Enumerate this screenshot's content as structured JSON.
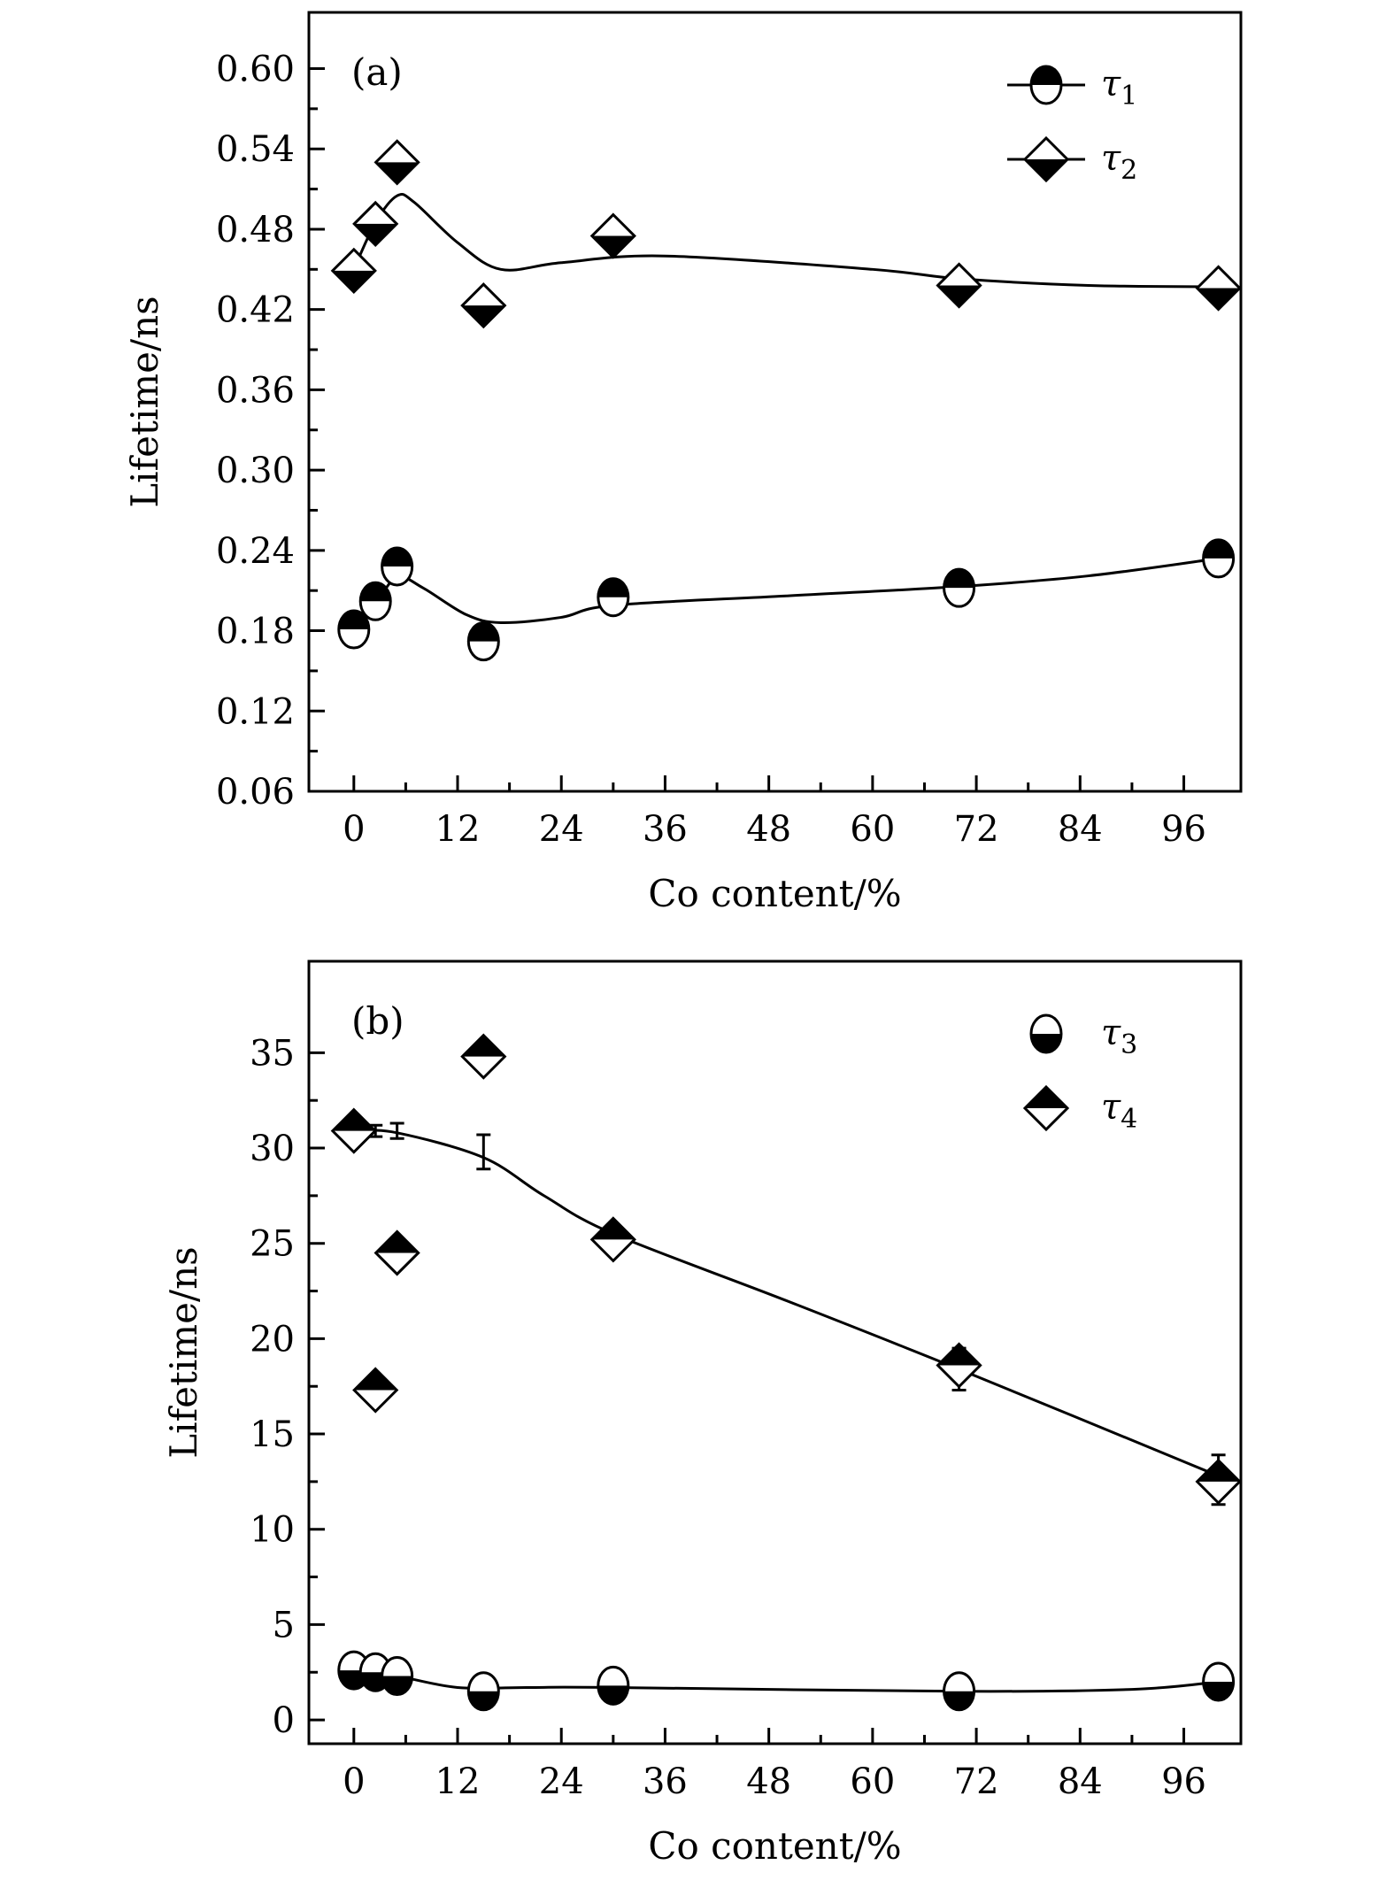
{
  "chart_data": [
    {
      "type": "scatter",
      "panel_label": "(a)",
      "xlabel": "Co content/%",
      "ylabel": "Lifetime/ns",
      "xlim": [
        -5.2,
        102.6
      ],
      "ylim": [
        0.06,
        0.642
      ],
      "xticks": [
        0,
        12,
        24,
        36,
        48,
        60,
        72,
        84,
        96
      ],
      "xtick_labels": [
        "0",
        "12",
        "24",
        "36",
        "48",
        "60",
        "72",
        "84",
        "96"
      ],
      "yticks": [
        0.06,
        0.12,
        0.18,
        0.24,
        0.3,
        0.36,
        0.42,
        0.48,
        0.54,
        0.6
      ],
      "ytick_labels": [
        "0.06",
        "0.12",
        "0.18",
        "0.24",
        "0.30",
        "0.36",
        "0.42",
        "0.48",
        "0.54",
        "0.60"
      ],
      "legend_position": "top-right",
      "series": [
        {
          "name": "τ1",
          "sub": "1",
          "marker": "circle-top-filled",
          "x": [
            0,
            2.5,
            5,
            15,
            30,
            70,
            100
          ],
          "y": [
            0.181,
            0.202,
            0.228,
            0.172,
            0.205,
            0.212,
            0.234
          ],
          "fit_x": [
            0,
            2.5,
            5,
            8,
            13,
            17,
            24,
            30,
            50,
            70,
            85,
            100
          ],
          "fit_y": [
            0.18,
            0.2,
            0.22,
            0.212,
            0.192,
            0.186,
            0.19,
            0.199,
            0.206,
            0.213,
            0.221,
            0.234
          ]
        },
        {
          "name": "τ2",
          "sub": "2",
          "marker": "diamond-bottom-filled",
          "x": [
            0,
            2.5,
            5,
            15,
            30,
            70,
            100
          ],
          "y": [
            0.449,
            0.484,
            0.53,
            0.423,
            0.475,
            0.438,
            0.436
          ],
          "fit_x": [
            0,
            2.5,
            5,
            7,
            12,
            17,
            24,
            36,
            60,
            70,
            85,
            100
          ],
          "fit_y": [
            0.45,
            0.485,
            0.505,
            0.5,
            0.47,
            0.45,
            0.455,
            0.46,
            0.45,
            0.443,
            0.438,
            0.437
          ]
        }
      ]
    },
    {
      "type": "scatter",
      "panel_label": "(b)",
      "xlabel": "Co content/%",
      "ylabel": "Lifetime/ns",
      "xlim": [
        -5.2,
        102.6
      ],
      "ylim": [
        -1.25,
        39.8
      ],
      "xticks": [
        0,
        12,
        24,
        36,
        48,
        60,
        72,
        84,
        96
      ],
      "xtick_labels": [
        "0",
        "12",
        "24",
        "36",
        "48",
        "60",
        "72",
        "84",
        "96"
      ],
      "yticks": [
        0,
        5,
        10,
        15,
        20,
        25,
        30,
        35
      ],
      "ytick_labels": [
        "0",
        "5",
        "10",
        "15",
        "20",
        "25",
        "30",
        "35"
      ],
      "legend_position": "top-right",
      "series": [
        {
          "name": "τ3",
          "sub": "3",
          "marker": "circle-bottom-filled",
          "x": [
            0,
            2.5,
            5,
            15,
            30,
            70,
            100
          ],
          "y": [
            2.6,
            2.5,
            2.3,
            1.5,
            1.8,
            1.5,
            2.0
          ],
          "fit_x": [
            0,
            5,
            12,
            20,
            30,
            70,
            90,
            100
          ],
          "fit_y": [
            2.6,
            2.3,
            1.7,
            1.7,
            1.7,
            1.5,
            1.6,
            2.0
          ]
        },
        {
          "name": "τ4",
          "sub": "4",
          "marker": "diamond-top-filled",
          "x": [
            0,
            2.5,
            5,
            15,
            30,
            70,
            100
          ],
          "y": [
            30.9,
            17.3,
            24.5,
            34.8,
            25.2,
            18.6,
            12.5
          ],
          "fit_x": [
            0,
            5,
            15,
            22,
            30,
            50,
            70,
            100
          ],
          "fit_y": [
            30.9,
            30.8,
            29.5,
            27.5,
            25.5,
            22.0,
            18.4,
            12.8
          ],
          "errorbars": [
            {
              "x": 2.5,
              "y": 30.9,
              "err": 0.3
            },
            {
              "x": 5,
              "y": 30.9,
              "err": 0.4
            },
            {
              "x": 15,
              "y": 29.8,
              "err": 0.9
            },
            {
              "x": 70,
              "y": 18.4,
              "err": 1.1
            },
            {
              "x": 100,
              "y": 12.6,
              "err": 1.3
            }
          ]
        }
      ]
    }
  ]
}
